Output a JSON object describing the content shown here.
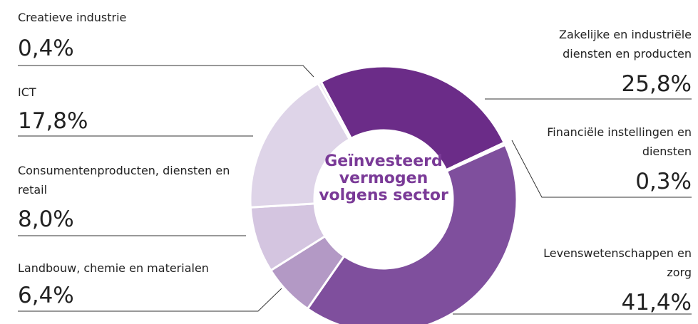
{
  "chart_data": {
    "type": "donut",
    "title": "Geïnvesteerd vermogen volgens sector",
    "categories": [
      "Zakelijke en industriële diensten en producten",
      "Financiële instellingen en diensten",
      "Levenswetenschappen en zorg",
      "Landbouw, chemie en materialen",
      "Consumentenproducten, diensten en retail",
      "ICT",
      "Creatieve industrie"
    ],
    "values": [
      25.8,
      0.3,
      41.4,
      6.4,
      8.0,
      17.8,
      0.4
    ],
    "value_labels": [
      "25,8%",
      "0,3%",
      "41,4%",
      "6,4%",
      "8,0%",
      "17,8%",
      "0,4%"
    ],
    "colors": [
      "#6b2c88",
      "#d8cce4",
      "#7f4f9d",
      "#b399c5",
      "#d4c5e0",
      "#ded4e8",
      "#ebe5f1"
    ]
  }
}
